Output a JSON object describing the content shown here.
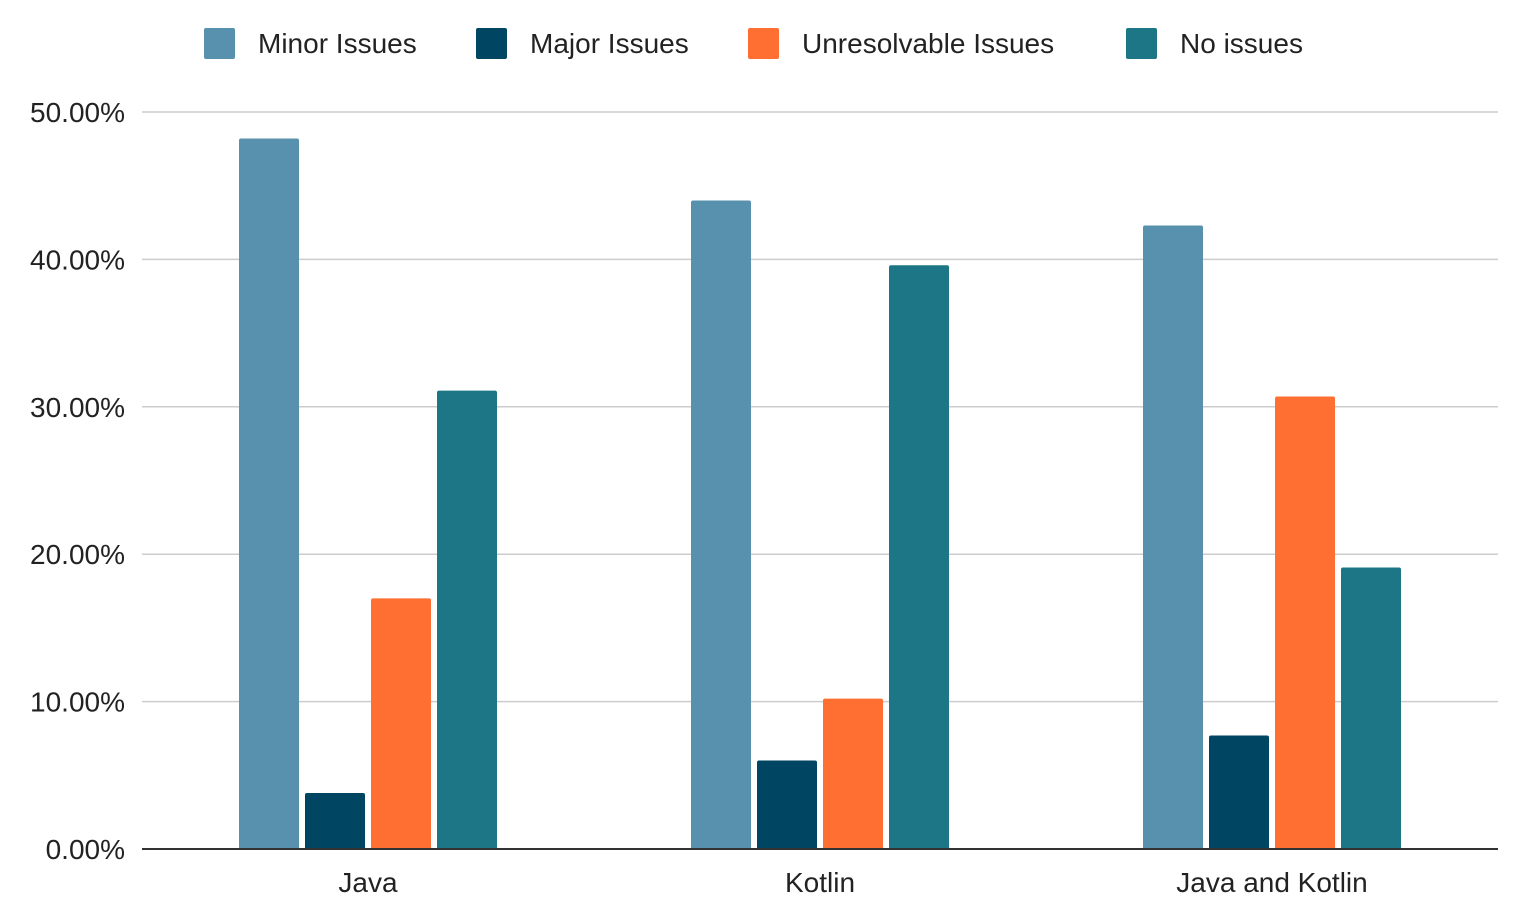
{
  "chart_data": {
    "type": "bar",
    "title": "",
    "xlabel": "",
    "ylabel": "",
    "categories": [
      "Java",
      "Kotlin",
      "Java and Kotlin"
    ],
    "series": [
      {
        "name": "Minor Issues",
        "color": "#5891AD",
        "values": [
          48.2,
          44.0,
          42.3
        ]
      },
      {
        "name": "Major Issues",
        "color": "#004561",
        "values": [
          3.8,
          6.0,
          7.7
        ]
      },
      {
        "name": "Unresolvable Issues",
        "color": "#FF6F31",
        "values": [
          17.0,
          10.2,
          30.7
        ]
      },
      {
        "name": "No issues",
        "color": "#1C7685",
        "values": [
          31.1,
          39.6,
          19.1
        ]
      }
    ],
    "ylim": [
      0,
      50
    ],
    "yticks": [
      "0.00%",
      "10.00%",
      "20.00%",
      "30.00%",
      "40.00%",
      "50.00%"
    ],
    "unit": "%",
    "grid": true,
    "legend": "top"
  }
}
